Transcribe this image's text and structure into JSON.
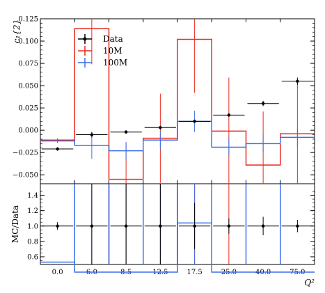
{
  "chart_data": {
    "type": "step-histogram-with-ratio",
    "bins": [
      "0.0",
      "6.0",
      "8.5",
      "12.5",
      "17.5",
      "25.0",
      "40.0",
      "75.0"
    ],
    "top": {
      "ylabel": "c₁{2}",
      "ylim": [
        -0.06,
        0.125
      ],
      "yticks": [
        "0.125",
        "0.100",
        "0.075",
        "0.050",
        "0.025",
        "0.000",
        "−0.025",
        "−0.050"
      ],
      "ytick_values": [
        0.125,
        0.1,
        0.075,
        0.05,
        0.025,
        0.0,
        -0.025,
        -0.05
      ],
      "series": [
        {
          "name": "Data",
          "color": "#000000",
          "style": "points",
          "values": [
            -0.021,
            -0.005,
            -0.002,
            0.003,
            0.01,
            0.017,
            0.03,
            0.055
          ],
          "errors": [
            0.001,
            0.003,
            0.002,
            0.002,
            0.002,
            0.002,
            0.003,
            0.004
          ]
        },
        {
          "name": "10M",
          "color": "#e8291c",
          "style": "step",
          "values": [
            -0.011,
            0.114,
            -0.055,
            -0.009,
            0.102,
            -0.001,
            -0.039,
            -0.004
          ],
          "errors": [
            0.002,
            0.04,
            0.04,
            0.05,
            0.06,
            0.06,
            0.06,
            0.06
          ]
        },
        {
          "name": "100M",
          "color": "#3a6ee8",
          "style": "step",
          "values": [
            -0.012,
            -0.017,
            -0.023,
            -0.011,
            0.01,
            -0.019,
            -0.015,
            -0.008
          ],
          "errors": [
            0.002,
            0.015,
            0.01,
            0.01,
            0.012,
            0.01,
            0.01,
            0.01
          ]
        }
      ],
      "legend": {
        "placement": "top-left",
        "entries": [
          "Data",
          "10M",
          "100M"
        ]
      }
    },
    "ratio": {
      "ylabel": "MC/Data",
      "ylim": [
        0.5,
        1.55
      ],
      "yticks": [
        "1.4",
        "1.2",
        "1.0",
        "0.8",
        "0.6"
      ],
      "ytick_values": [
        1.4,
        1.2,
        1.0,
        0.8,
        0.6
      ],
      "data_values": [
        1.0,
        1.0,
        1.0,
        1.0,
        1.0,
        1.0,
        1.0,
        1.0
      ],
      "data_errors": [
        0.05,
        0.6,
        0.9,
        0.65,
        0.3,
        0.1,
        0.12,
        0.08
      ],
      "mc_blue_values": [
        0.53,
        0.4,
        0.4,
        0.4,
        1.04,
        0.4,
        0.4,
        0.4
      ]
    },
    "xlabel": "Q²",
    "grid": false
  }
}
